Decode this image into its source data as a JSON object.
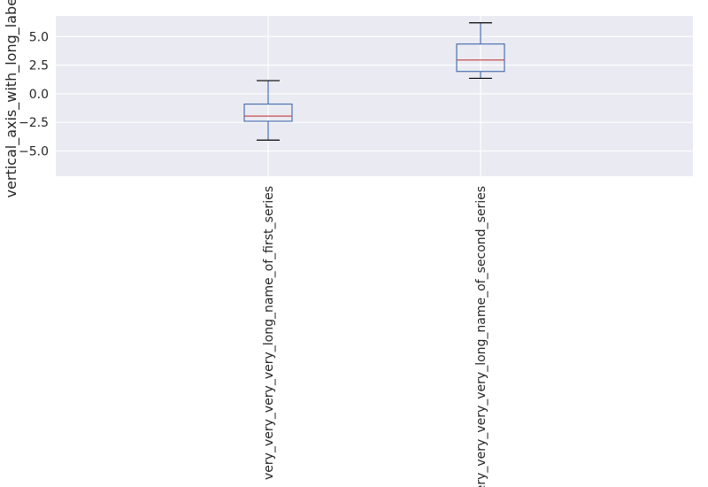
{
  "chart_data": {
    "type": "box",
    "title": "",
    "xlabel": "",
    "ylabel": "vertical_axis_with_long_label",
    "ylim": [
      -7.2,
      6.8
    ],
    "yticks": [
      -5.0,
      -2.5,
      0.0,
      2.5,
      5.0
    ],
    "ytick_labels": [
      "−5.0",
      "−2.5",
      "0.0",
      "2.5",
      "5.0"
    ],
    "grid": true,
    "categories": [
      "very_very_very_very_long_name_of_first_series",
      "very_very_very_very_long_name_of_second_series"
    ],
    "boxes": [
      {
        "category": "very_very_very_very_long_name_of_first_series",
        "whisker_low": -4.05,
        "q1": -2.4,
        "median": -1.95,
        "q3": -0.9,
        "whisker_high": 1.15
      },
      {
        "category": "very_very_very_very_long_name_of_second_series",
        "whisker_low": 1.35,
        "q1": 1.95,
        "median": 2.95,
        "q3": 4.35,
        "whisker_high": 6.2
      }
    ],
    "colors": {
      "background": "#eaeaf2",
      "grid": "#ffffff",
      "box": "#4c72b0",
      "median": "#c44e52",
      "cap": "#000000",
      "text": "#262626"
    }
  }
}
